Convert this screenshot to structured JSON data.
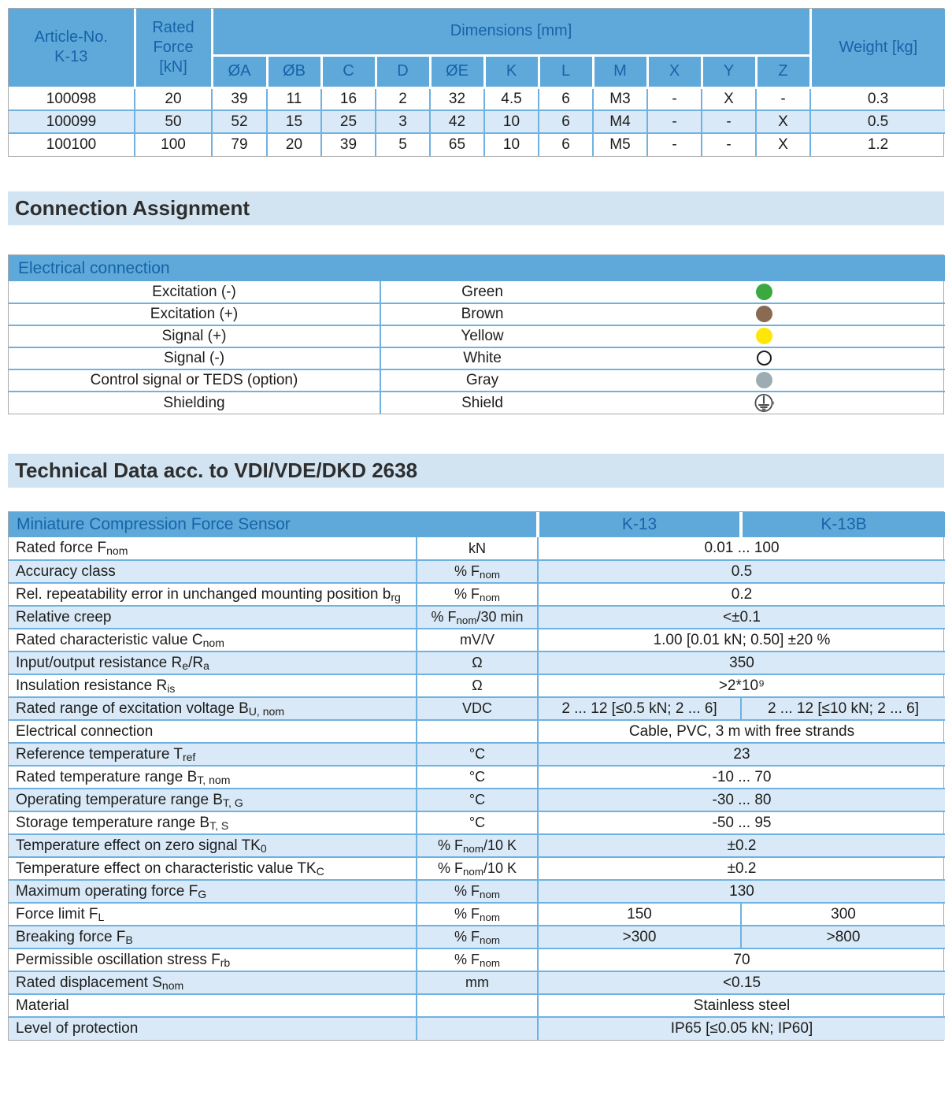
{
  "colors": {
    "table_header_blue": "#5ea9da",
    "header_text_blue": "#1763a8",
    "row_alt_blue": "#d9e9f7",
    "grid_line_blue": "#6fb2e0",
    "heading_band_blue": "#d2e4f2",
    "body_text": "#1d1d1b"
  },
  "headings": {
    "connection": "Connection Assignment",
    "technical": "Technical Data acc. to VDI/VDE/DKD 2638"
  },
  "dimensions_table": {
    "header": {
      "article": "Article-No.\nK-13",
      "rated_force": "Rated\nForce\n[kN]",
      "dimensions_label": "Dimensions [mm]",
      "weight": "Weight [kg]",
      "sub_cols": [
        "ØA",
        "ØB",
        "C",
        "D",
        "ØE",
        "K",
        "L",
        "M",
        "X",
        "Y",
        "Z"
      ]
    },
    "rows": [
      [
        "100098",
        "20",
        "39",
        "11",
        "16",
        "2",
        "32",
        "4.5",
        "6",
        "M3",
        "-",
        "X",
        "-",
        "0.3"
      ],
      [
        "100099",
        "50",
        "52",
        "15",
        "25",
        "3",
        "42",
        "10",
        "6",
        "M4",
        "-",
        "-",
        "X",
        "0.5"
      ],
      [
        "100100",
        "100",
        "79",
        "20",
        "39",
        "5",
        "65",
        "10",
        "6",
        "M5",
        "-",
        "-",
        "X",
        "1.2"
      ]
    ]
  },
  "electrical_table": {
    "header": "Electrical connection",
    "rows": [
      {
        "label": "Excitation (-)",
        "color_name": "Green",
        "dot_color": "#3aa93f"
      },
      {
        "label": "Excitation (+)",
        "color_name": "Brown",
        "dot_color": "#8a6a52"
      },
      {
        "label": "Signal (+)",
        "color_name": "Yellow",
        "dot_color": "#ffe60a"
      },
      {
        "label": "Signal (-)",
        "color_name": "White",
        "dot_color": "#ffffff",
        "dot_border": "#1c1c1c"
      },
      {
        "label": "Control signal or TEDS (option)",
        "color_name": "Gray",
        "dot_color": "#9dacb2"
      },
      {
        "label": "Shielding",
        "color_name": "Shield",
        "symbol": "ground"
      }
    ]
  },
  "tech_table": {
    "title": "Miniature Compression Force Sensor",
    "col_k13": "K-13",
    "col_k13b": "K-13B",
    "rows": [
      {
        "param": "Rated force F_{nom}",
        "unit": "kN",
        "value": "0.01 ... 100"
      },
      {
        "param": "Accuracy class",
        "unit": "% F_{nom}",
        "value": "0.5"
      },
      {
        "param": "Rel. repeatability error in unchanged mounting position b_{rg}",
        "unit": "% F_{nom}",
        "value": "0.2"
      },
      {
        "param": "Relative creep",
        "unit": "% F_{nom}/30 min",
        "value": "<±0.1"
      },
      {
        "param": "Rated characteristic value C_{nom}",
        "unit": "mV/V",
        "value": "1.00 [0.01 kN; 0.50] ±20 %"
      },
      {
        "param": "Input/output resistance R_{e}/R_{a}",
        "unit": "Ω",
        "value": "350"
      },
      {
        "param": "Insulation resistance R_{is}",
        "unit": "Ω",
        "value": ">2*10⁹"
      },
      {
        "param": "Rated range of excitation voltage B_{U, nom}",
        "unit": "VDC",
        "value_k13": "2 ... 12 [≤0.5 kN; 2 ... 6]",
        "value_k13b": "2 ... 12 [≤10 kN; 2 ... 6]"
      },
      {
        "param": "Electrical connection",
        "unit": "",
        "value": "Cable, PVC, 3 m with free strands"
      },
      {
        "param": "Reference temperature T_{ref}",
        "unit": "°C",
        "value": "23"
      },
      {
        "param": "Rated temperature range B_{T, nom}",
        "unit": "°C",
        "value": "-10 ... 70"
      },
      {
        "param": "Operating temperature range B_{T, G}",
        "unit": "°C",
        "value": "-30 ... 80"
      },
      {
        "param": "Storage temperature range B_{T, S}",
        "unit": "°C",
        "value": "-50 ... 95"
      },
      {
        "param": "Temperature effect on zero signal TK_{0}",
        "unit": "% F_{nom}/10 K",
        "value": "±0.2"
      },
      {
        "param": "Temperature effect on characteristic value TK_{C}",
        "unit": "% F_{nom}/10 K",
        "value": "±0.2"
      },
      {
        "param": "Maximum operating force F_{G}",
        "unit": "% F_{nom}",
        "value": "130"
      },
      {
        "param": "Force limit F_{L}",
        "unit": "% F_{nom}",
        "value_k13": "150",
        "value_k13b": "300"
      },
      {
        "param": "Breaking force F_{B}",
        "unit": "% F_{nom}",
        "value_k13": ">300",
        "value_k13b": ">800"
      },
      {
        "param": "Permissible oscillation stress F_{rb}",
        "unit": "% F_{nom}",
        "value": "70"
      },
      {
        "param": "Rated displacement S_{nom}",
        "unit": "mm",
        "value": "<0.15"
      },
      {
        "param": "Material",
        "unit": "",
        "value": "Stainless steel"
      },
      {
        "param": "Level of protection",
        "unit": "",
        "value": "IP65 [≤0.05 kN; IP60]"
      }
    ]
  }
}
